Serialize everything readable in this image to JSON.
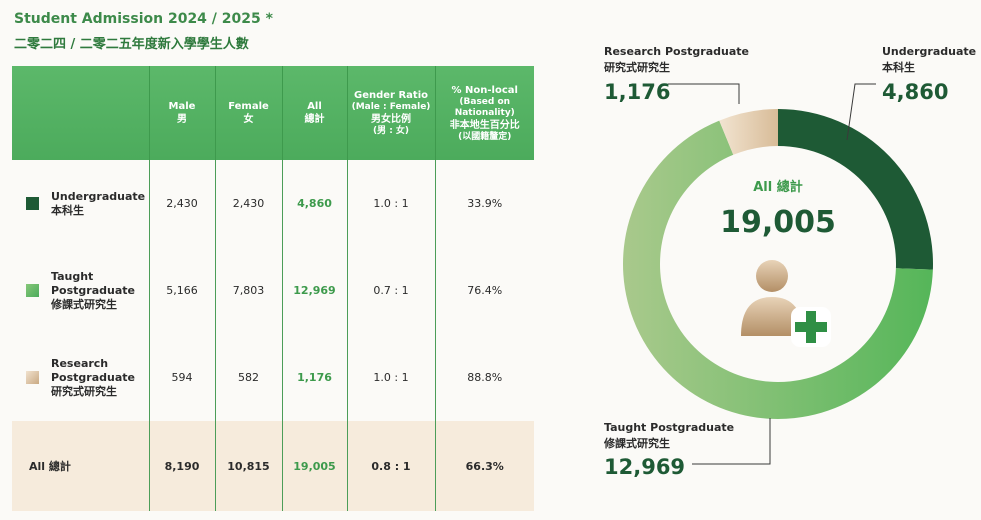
{
  "header": {
    "title_en": "Student Admission 2024 / 2025",
    "asterisk": "*",
    "title_zh": "二零二四 / 二零二五年度新入學學生人數"
  },
  "table": {
    "headers": [
      {
        "l1": "",
        "l2": "",
        "l3": "",
        "l4": ""
      },
      {
        "l1": "Male",
        "l2": "男",
        "l3": "",
        "l4": ""
      },
      {
        "l1": "Female",
        "l2": "女",
        "l3": "",
        "l4": ""
      },
      {
        "l1": "All",
        "l2": "總計",
        "l3": "",
        "l4": ""
      },
      {
        "l1": "Gender Ratio",
        "l2": "(Male : Female)",
        "l3": "男女比例",
        "l4": "(男 : 女)"
      },
      {
        "l1": "% Non-local",
        "l2": "(Based on Nationality)",
        "l3": "非本地生百分比",
        "l4": "(以國籍釐定)"
      }
    ],
    "rows": [
      {
        "label_en": "Undergraduate",
        "label_zh": "本科生",
        "male": "2,430",
        "female": "2,430",
        "all": "4,860",
        "ratio": "1.0 : 1",
        "nonlocal": "33.9%"
      },
      {
        "label_en": "Taught Postgraduate",
        "label_zh": "修課式研究生",
        "male": "5,166",
        "female": "7,803",
        "all": "12,969",
        "ratio": "0.7 : 1",
        "nonlocal": "76.4%"
      },
      {
        "label_en": "Research Postgraduate",
        "label_zh": "研究式研究生",
        "male": "594",
        "female": "582",
        "all": "1,176",
        "ratio": "1.0 : 1",
        "nonlocal": "88.8%"
      }
    ],
    "total": {
      "label": "All 總計",
      "male": "8,190",
      "female": "10,815",
      "all": "19,005",
      "ratio": "0.8 : 1",
      "nonlocal": "66.3%"
    }
  },
  "chart_data": {
    "type": "pie",
    "categories": [
      "Undergraduate 本科生",
      "Taught Postgraduate 修課式研究生",
      "Research Postgraduate 研究式研究生"
    ],
    "values": [
      4860,
      12969,
      1176
    ],
    "value_labels": [
      "4,860",
      "12,969",
      "1,176"
    ],
    "label_en": [
      "Undergraduate",
      "Taught Postgraduate",
      "Research Postgraduate"
    ],
    "label_zh": [
      "本科生",
      "修課式研究生",
      "研究式研究生"
    ],
    "colors": [
      "#1e5a35",
      "#5fb65e",
      "#e7d3ba"
    ],
    "center_label": "All 總計",
    "center_value": "19,005",
    "center_icon": "user-add-icon"
  }
}
